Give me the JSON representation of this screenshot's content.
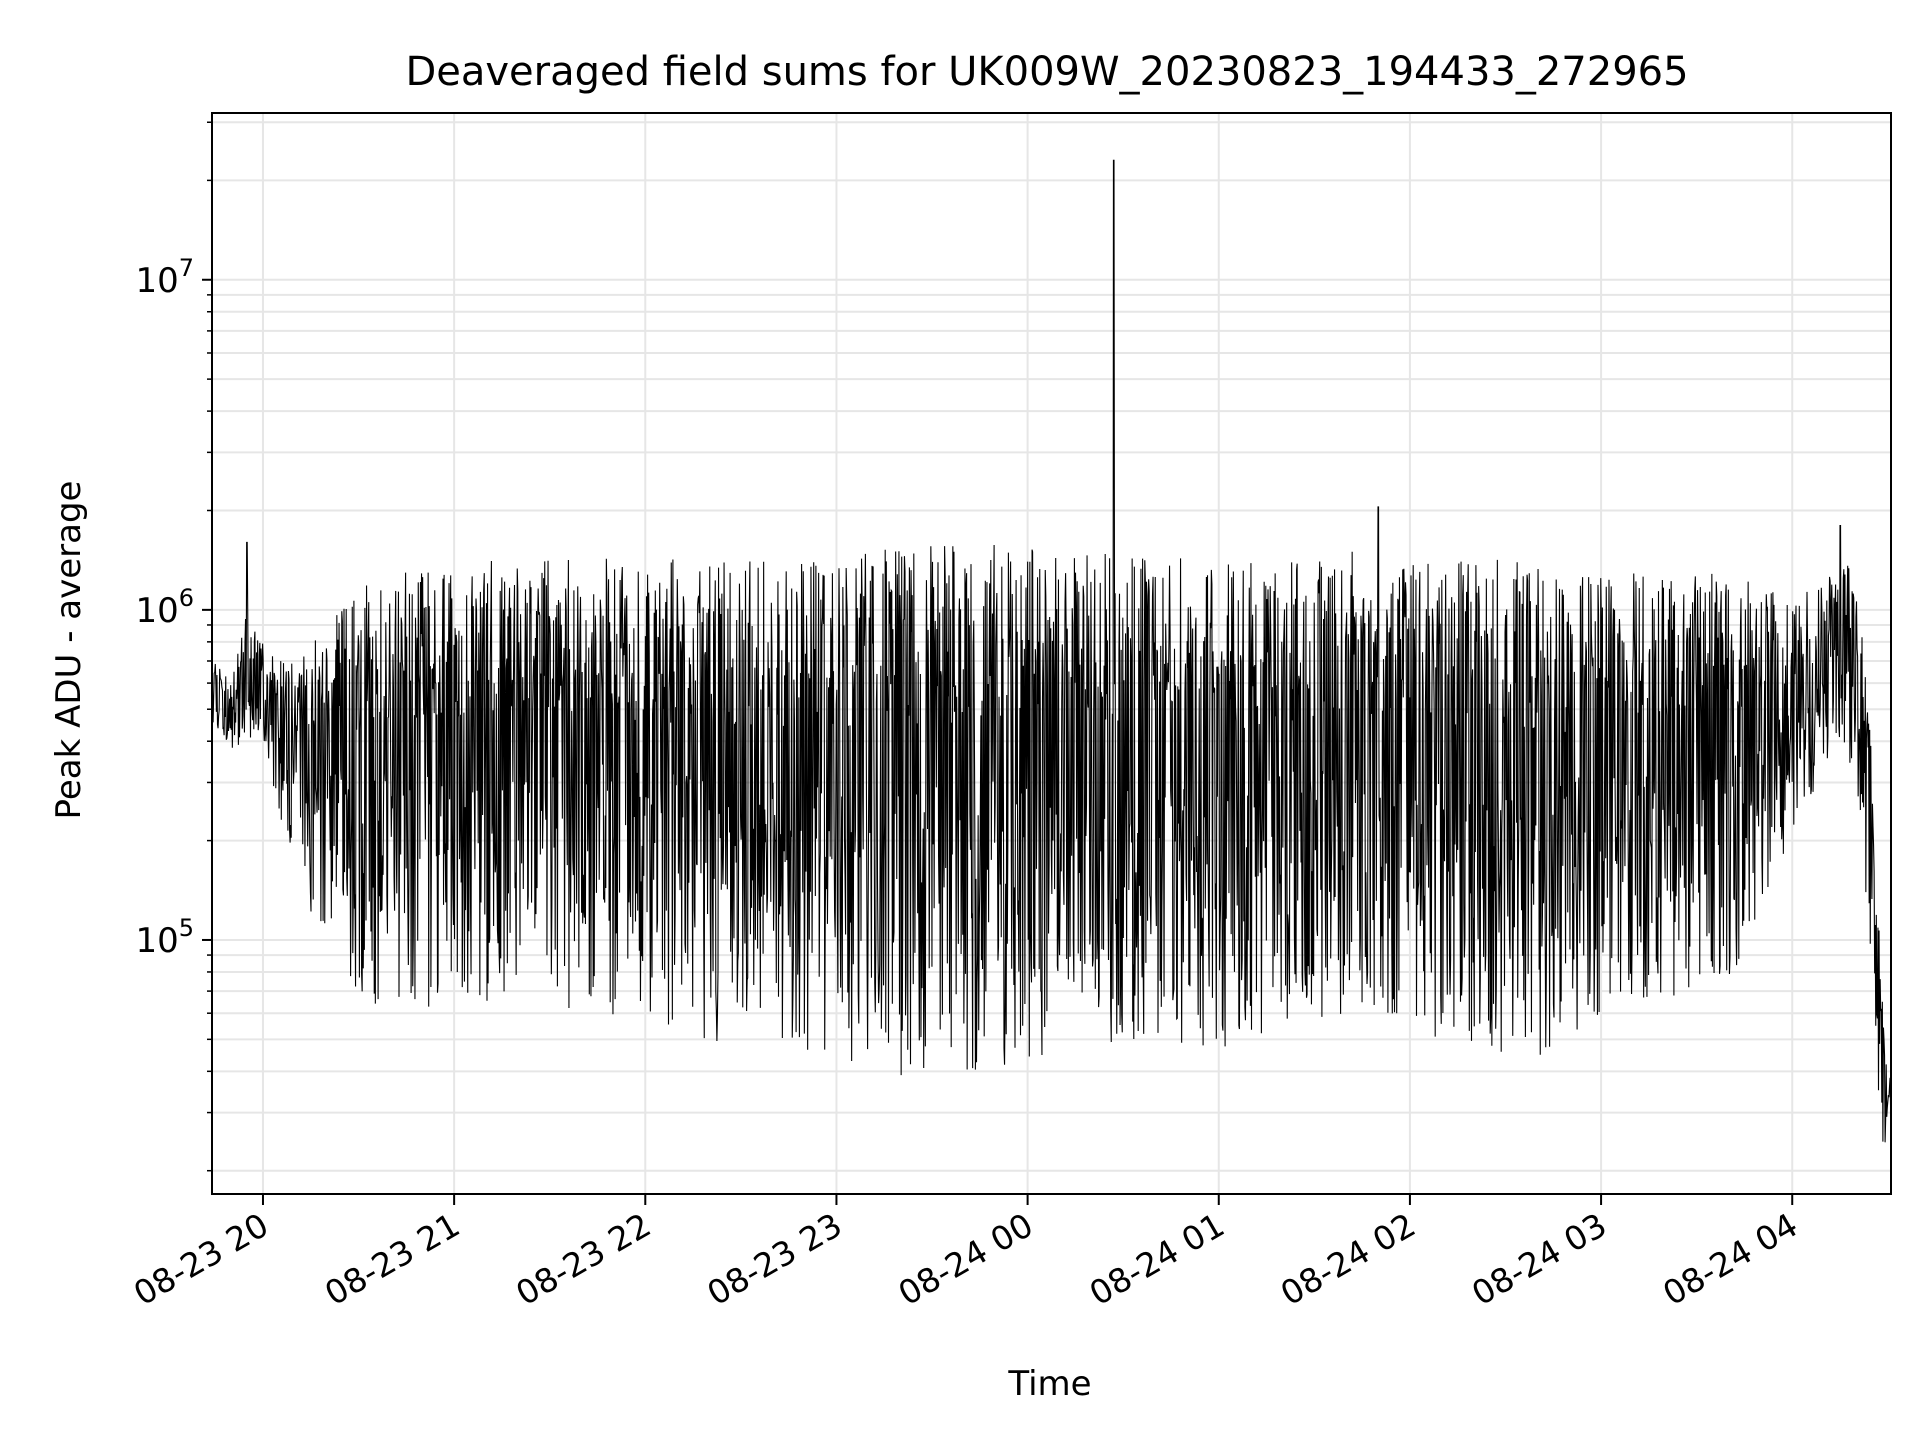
{
  "chart_data": {
    "type": "line",
    "title": "Deaveraged field sums for UK009W_20230823_194433_272965",
    "xlabel": "Time",
    "ylabel": "Peak ADU - average",
    "yscale": "log",
    "xlim": [
      "2023-08-23 19:44",
      "2023-08-24 04:31"
    ],
    "ylim": [
      17000,
      32000000
    ],
    "grid": true,
    "legend": "none",
    "line_color": "#000000",
    "x_ticks": [
      {
        "label": "08-23 20",
        "value": "2023-08-23 20:00"
      },
      {
        "label": "08-23 21",
        "value": "2023-08-23 21:00"
      },
      {
        "label": "08-23 22",
        "value": "2023-08-23 22:00"
      },
      {
        "label": "08-23 23",
        "value": "2023-08-23 23:00"
      },
      {
        "label": "08-24 00",
        "value": "2023-08-24 00:00"
      },
      {
        "label": "08-24 01",
        "value": "2023-08-24 01:00"
      },
      {
        "label": "08-24 02",
        "value": "2023-08-24 02:00"
      },
      {
        "label": "08-24 03",
        "value": "2023-08-24 03:00"
      },
      {
        "label": "08-24 04",
        "value": "2023-08-24 04:00"
      }
    ],
    "y_ticks": [
      {
        "base": "10",
        "exp": "5",
        "value": 100000
      },
      {
        "base": "10",
        "exp": "6",
        "value": 1000000
      },
      {
        "base": "10",
        "exp": "7",
        "value": 10000000
      }
    ],
    "envelope": [
      {
        "t": "2023-08-23 19:45",
        "upper": 700000,
        "lower": 450000
      },
      {
        "t": "2023-08-23 19:50",
        "upper": 600000,
        "lower": 380000
      },
      {
        "t": "2023-08-23 19:55",
        "upper": 1000000,
        "lower": 400000
      },
      {
        "t": "2023-08-23 20:00",
        "upper": 800000,
        "lower": 420000
      },
      {
        "t": "2023-08-23 20:05",
        "upper": 700000,
        "lower": 220000
      },
      {
        "t": "2023-08-23 20:10",
        "upper": 720000,
        "lower": 160000
      },
      {
        "t": "2023-08-23 20:15",
        "upper": 800000,
        "lower": 110000
      },
      {
        "t": "2023-08-23 20:20",
        "upper": 900000,
        "lower": 90000
      },
      {
        "t": "2023-08-23 20:25",
        "upper": 1100000,
        "lower": 80000
      },
      {
        "t": "2023-08-23 20:30",
        "upper": 1200000,
        "lower": 55000
      },
      {
        "t": "2023-08-23 20:40",
        "upper": 1300000,
        "lower": 65000
      },
      {
        "t": "2023-08-23 21:00",
        "upper": 1350000,
        "lower": 60000
      },
      {
        "t": "2023-08-23 21:20",
        "upper": 1450000,
        "lower": 70000
      },
      {
        "t": "2023-08-23 21:40",
        "upper": 1450000,
        "lower": 60000
      },
      {
        "t": "2023-08-23 22:00",
        "upper": 1450000,
        "lower": 55000
      },
      {
        "t": "2023-08-23 22:20",
        "upper": 1400000,
        "lower": 50000
      },
      {
        "t": "2023-08-23 22:40",
        "upper": 1450000,
        "lower": 45000
      },
      {
        "t": "2023-08-23 23:00",
        "upper": 1500000,
        "lower": 42000
      },
      {
        "t": "2023-08-23 23:20",
        "upper": 1550000,
        "lower": 38000
      },
      {
        "t": "2023-08-23 23:40",
        "upper": 1600000,
        "lower": 40000
      },
      {
        "t": "2023-08-24 00:00",
        "upper": 1550000,
        "lower": 42000
      },
      {
        "t": "2023-08-24 00:20",
        "upper": 1500000,
        "lower": 48000
      },
      {
        "t": "2023-08-24 00:40",
        "upper": 1450000,
        "lower": 50000
      },
      {
        "t": "2023-08-24 01:00",
        "upper": 1450000,
        "lower": 45000
      },
      {
        "t": "2023-08-24 01:20",
        "upper": 1400000,
        "lower": 55000
      },
      {
        "t": "2023-08-24 01:40",
        "upper": 1500000,
        "lower": 60000
      },
      {
        "t": "2023-08-24 02:00",
        "upper": 1500000,
        "lower": 55000
      },
      {
        "t": "2023-08-24 02:20",
        "upper": 1450000,
        "lower": 45000
      },
      {
        "t": "2023-08-24 02:40",
        "upper": 1400000,
        "lower": 42000
      },
      {
        "t": "2023-08-24 03:00",
        "upper": 1300000,
        "lower": 60000
      },
      {
        "t": "2023-08-24 03:20",
        "upper": 1300000,
        "lower": 65000
      },
      {
        "t": "2023-08-24 03:40",
        "upper": 1300000,
        "lower": 70000
      },
      {
        "t": "2023-08-24 04:00",
        "upper": 1100000,
        "lower": 200000
      },
      {
        "t": "2023-08-24 04:10",
        "upper": 1200000,
        "lower": 300000
      },
      {
        "t": "2023-08-24 04:15",
        "upper": 1600000,
        "lower": 400000
      },
      {
        "t": "2023-08-24 04:20",
        "upper": 1300000,
        "lower": 300000
      },
      {
        "t": "2023-08-24 04:25",
        "upper": 400000,
        "lower": 80000
      },
      {
        "t": "2023-08-24 04:28",
        "upper": 70000,
        "lower": 23000
      },
      {
        "t": "2023-08-24 04:31",
        "upper": 40000,
        "lower": 25000
      }
    ],
    "spikes": [
      {
        "t": "2023-08-23 19:55",
        "value": 1600000
      },
      {
        "t": "2023-08-24 00:27",
        "value": 23000000
      },
      {
        "t": "2023-08-24 01:50",
        "value": 2050000
      },
      {
        "t": "2023-08-24 04:15",
        "value": 1800000
      }
    ]
  }
}
